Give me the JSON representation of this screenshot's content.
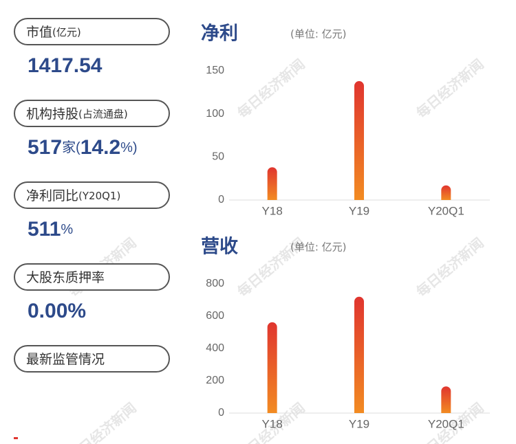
{
  "stats": [
    {
      "label": [
        "市值",
        "(亿元)"
      ],
      "value": [
        "1417.54"
      ]
    },
    {
      "label": [
        "机构持股",
        "(占流通盘)"
      ],
      "value": [
        "517",
        "家(",
        "14.2",
        "%)"
      ]
    },
    {
      "label": [
        "净利同比",
        "(Y20Q1)"
      ],
      "value": [
        "511",
        "%"
      ]
    },
    {
      "label": [
        "大股东质押率"
      ],
      "value": [
        "0.00%"
      ]
    },
    {
      "label": [
        "最新监管情况"
      ]
    }
  ],
  "watermark": "每日经济新闻",
  "chart_data": [
    {
      "type": "bar",
      "title": "净利",
      "subtitle": "(单位: 亿元)",
      "categories": [
        "Y18",
        "Y19",
        "Y20Q1"
      ],
      "values": [
        38,
        138,
        17
      ],
      "color": [
        "#e0352f",
        "#f28b22"
      ],
      "ylim": [
        0,
        150
      ],
      "yticks": [
        0,
        50,
        100,
        150
      ]
    },
    {
      "type": "bar",
      "title": "营收",
      "subtitle": "(单位: 亿元)",
      "categories": [
        "Y18",
        "Y19",
        "Y20Q1"
      ],
      "values": [
        562,
        720,
        165
      ],
      "color": [
        "#e0352f",
        "#f28b22"
      ],
      "ylim": [
        0,
        800
      ],
      "yticks": [
        0,
        200,
        400,
        600,
        800
      ]
    }
  ]
}
